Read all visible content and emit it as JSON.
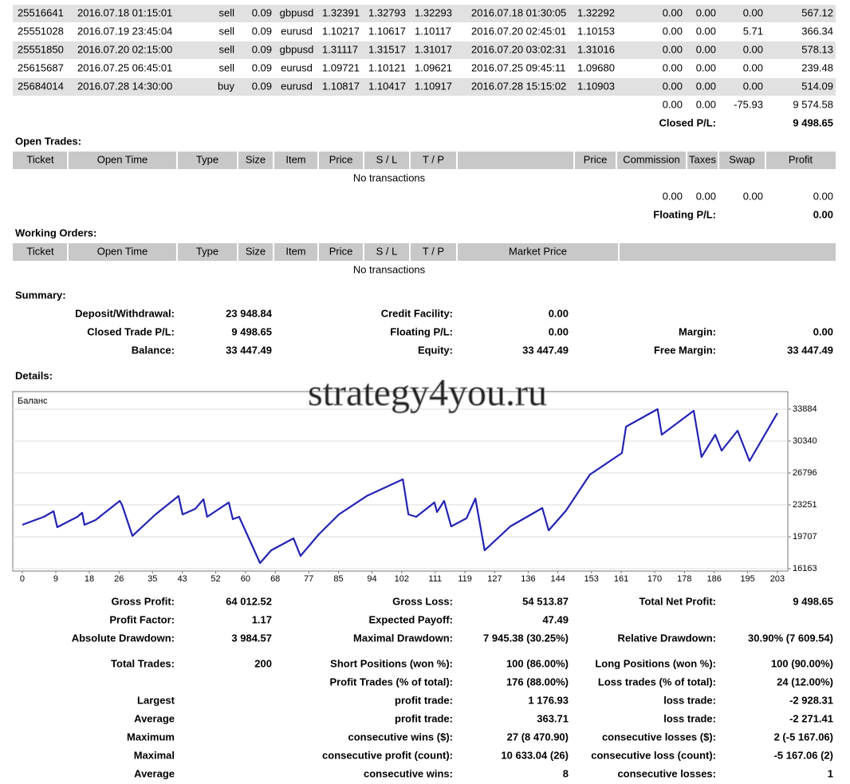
{
  "closed_trades": {
    "rows": [
      [
        "25516641",
        "2016.07.18 01:15:01",
        "sell",
        "0.09",
        "gbpusd",
        "1.32391",
        "1.32793",
        "1.32293",
        "2016.07.18 01:30:05",
        "1.32292",
        "0.00",
        "0.00",
        "0.00",
        "567.12"
      ],
      [
        "25551028",
        "2016.07.19 23:45:04",
        "sell",
        "0.09",
        "eurusd",
        "1.10217",
        "1.10617",
        "1.10117",
        "2016.07.20 02:45:01",
        "1.10153",
        "0.00",
        "0.00",
        "5.71",
        "366.34"
      ],
      [
        "25551850",
        "2016.07.20 02:15:00",
        "sell",
        "0.09",
        "gbpusd",
        "1.31117",
        "1.31517",
        "1.31017",
        "2016.07.20 03:02:31",
        "1.31016",
        "0.00",
        "0.00",
        "0.00",
        "578.13"
      ],
      [
        "25615687",
        "2016.07.25 06:45:01",
        "sell",
        "0.09",
        "eurusd",
        "1.09721",
        "1.10121",
        "1.09621",
        "2016.07.25 09:45:11",
        "1.09680",
        "0.00",
        "0.00",
        "0.00",
        "239.48"
      ],
      [
        "25684014",
        "2016.07.28 14:30:00",
        "buy",
        "0.09",
        "eurusd",
        "1.10817",
        "1.10417",
        "1.10917",
        "2016.07.28 15:15:02",
        "1.10903",
        "0.00",
        "0.00",
        "0.00",
        "514.09"
      ]
    ],
    "totals": [
      "0.00",
      "0.00",
      "-75.93",
      "9 574.58"
    ],
    "closed_pl_label": "Closed P/L:",
    "closed_pl": "9 498.65"
  },
  "open_trades": {
    "title": "Open Trades:",
    "headers": [
      "Ticket",
      "Open Time",
      "Type",
      "Size",
      "Item",
      "Price",
      "S / L",
      "T / P",
      "Price",
      "Commission",
      "Taxes",
      "Swap",
      "Profit"
    ],
    "empty": "No transactions",
    "totals": [
      "0.00",
      "0.00",
      "0.00",
      "0.00"
    ],
    "floating_pl_label": "Floating P/L:",
    "floating_pl": "0.00"
  },
  "working_orders": {
    "title": "Working Orders:",
    "headers": [
      "Ticket",
      "Open Time",
      "Type",
      "Size",
      "Item",
      "Price",
      "S / L",
      "T / P",
      "Market Price"
    ],
    "empty": "No transactions"
  },
  "summary": {
    "title": "Summary:",
    "rows": [
      {
        "a": [
          "Deposit/Withdrawal:",
          "23 948.84"
        ],
        "b": [
          "Credit Facility:",
          "0.00"
        ]
      },
      {
        "a": [
          "Closed Trade P/L:",
          "9 498.65"
        ],
        "b": [
          "Floating P/L:",
          "0.00"
        ],
        "c": [
          "Margin:",
          "0.00"
        ]
      },
      {
        "a": [
          "Balance:",
          "33 447.49"
        ],
        "b": [
          "Equity:",
          "33 447.49"
        ],
        "c": [
          "Free Margin:",
          "33 447.49"
        ]
      }
    ]
  },
  "details": {
    "title": "Details:",
    "stats": [
      {
        "a": [
          "Gross Profit:",
          "64 012.52"
        ],
        "b": [
          "Gross Loss:",
          "54 513.87"
        ],
        "c": [
          "Total Net Profit:",
          "9 498.65"
        ]
      },
      {
        "a": [
          "Profit Factor:",
          "1.17"
        ],
        "b": [
          "Expected Payoff:",
          "47.49"
        ]
      },
      {
        "a": [
          "Absolute Drawdown:",
          "3 984.57"
        ],
        "b": [
          "Maximal Drawdown:",
          "7 945.38 (30.25%)"
        ],
        "c": [
          "Relative Drawdown:",
          "30.90% (7 609.54)"
        ]
      },
      {
        "a": [
          "Total Trades:",
          "200"
        ],
        "b": [
          "Short Positions (won %):",
          "100 (86.00%)"
        ],
        "c": [
          "Long Positions (won %):",
          "100 (90.00%)"
        ]
      },
      {
        "b": [
          "Profit Trades (% of total):",
          "176 (88.00%)"
        ],
        "c": [
          "Loss trades (% of total):",
          "24 (12.00%)"
        ]
      },
      {
        "a": [
          "Largest"
        ],
        "b": [
          "profit trade:",
          "1 176.93"
        ],
        "c": [
          "loss trade:",
          "-2 928.31"
        ]
      },
      {
        "a": [
          "Average"
        ],
        "b": [
          "profit trade:",
          "363.71"
        ],
        "c": [
          "loss trade:",
          "-2 271.41"
        ]
      },
      {
        "a": [
          "Maximum"
        ],
        "b": [
          "consecutive wins ($):",
          "27 (8 470.90)"
        ],
        "c": [
          "consecutive losses ($):",
          "2 (-5 167.06)"
        ]
      },
      {
        "a": [
          "Maximal"
        ],
        "b": [
          "consecutive profit (count):",
          "10 633.04 (26)"
        ],
        "c": [
          "consecutive loss (count):",
          "-5 167.06 (2)"
        ]
      },
      {
        "a": [
          "Average"
        ],
        "b": [
          "consecutive wins:",
          "8"
        ],
        "c": [
          "consecutive losses:",
          "1"
        ]
      }
    ]
  },
  "watermark": "strategy4you.ru",
  "chart_data": {
    "type": "line",
    "label": "Баланс",
    "color": "#2323b4",
    "x": [
      0,
      5.8,
      8.4,
      9.4,
      14.8,
      16.1,
      16.7,
      19.7,
      26.2,
      26.8,
      29.6,
      35.8,
      42.0,
      43.1,
      46.5,
      48.7,
      49.7,
      55.5,
      56.6,
      58.3,
      63.9,
      66.9,
      72.9,
      74.8,
      79.7,
      85.1,
      92.6,
      102.3,
      103.8,
      105.9,
      110.8,
      111.5,
      113.4,
      115.3,
      119.4,
      121.8,
      124.3,
      131.2,
      139.8,
      141.5,
      146.2,
      152.6,
      161.2,
      162.3,
      170.8,
      171.9,
      180.5,
      182.6,
      186.3,
      188.0,
      192.3,
      195.5,
      203
    ],
    "values": [
      21040,
      21920,
      22540,
      20770,
      21920,
      22370,
      21040,
      21570,
      23690,
      23250,
      19800,
      22190,
      24230,
      22190,
      22810,
      23870,
      21920,
      23520,
      21660,
      21920,
      16780,
      18200,
      19530,
      17580,
      19970,
      22190,
      24230,
      26090,
      22190,
      21920,
      23520,
      22450,
      23690,
      20860,
      21750,
      23960,
      18200,
      20860,
      22900,
      20420,
      22630,
      26620,
      29010,
      31930,
      33880,
      31050,
      33710,
      28570,
      31050,
      29280,
      31490,
      28120,
      33450
    ],
    "xlim": [
      -2.57,
      205.8
    ],
    "ylim": [
      15897,
      35832
    ],
    "xticks": [
      0,
      9,
      18,
      26,
      35,
      43,
      52,
      60,
      68,
      77,
      85,
      94,
      102,
      111,
      119,
      127,
      136,
      144,
      153,
      161,
      170,
      178,
      186,
      195,
      203
    ],
    "yticks": [
      16163,
      19707,
      23251,
      26796,
      30340,
      33884
    ],
    "grid": true
  }
}
